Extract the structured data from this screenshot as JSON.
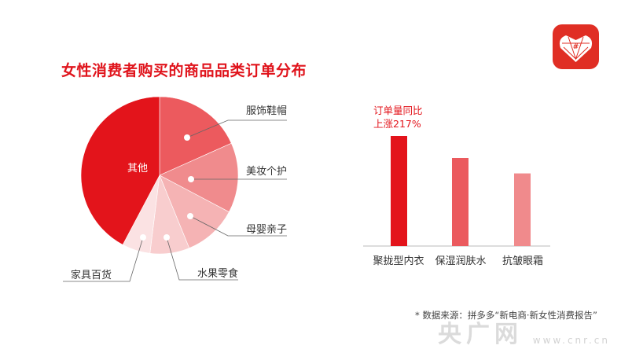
{
  "title": "女性消费者购买的商品品类订单分布",
  "logo": {
    "name": "拼多多",
    "color": "#e02e24"
  },
  "chart_data": [
    {
      "type": "pie",
      "title": "",
      "slices": [
        {
          "label": "服饰鞋帽",
          "value": 18.3,
          "color": "#ec5a5e"
        },
        {
          "label": "美妆个护",
          "value": 14.4,
          "color": "#f08b8d"
        },
        {
          "label": "母婴亲子",
          "value": 11.1,
          "color": "#f5b3b4"
        },
        {
          "label": "水果零食",
          "value": 8.1,
          "color": "#f8cdce"
        },
        {
          "label": "家具百货",
          "value": 5.8,
          "color": "#fbe2e3"
        },
        {
          "label": "其他",
          "value": 42.2,
          "color": "#e3141b"
        }
      ]
    },
    {
      "type": "bar",
      "categories": [
        "聚拢型内衣",
        "保湿润肤水",
        "抗皱眼霜"
      ],
      "values": [
        100,
        80,
        66
      ],
      "colors": [
        "#e3141b",
        "#eb5a5e",
        "#f08a8c"
      ],
      "annotation": {
        "line1": "订单量同比",
        "line2": "上涨217%"
      },
      "ylim": [
        0,
        100
      ]
    }
  ],
  "footnote": "* 数据来源：拼多多“新电商·新女性消费报告”",
  "watermark": {
    "text": "央广网",
    "url": "www.cnr.cn"
  }
}
